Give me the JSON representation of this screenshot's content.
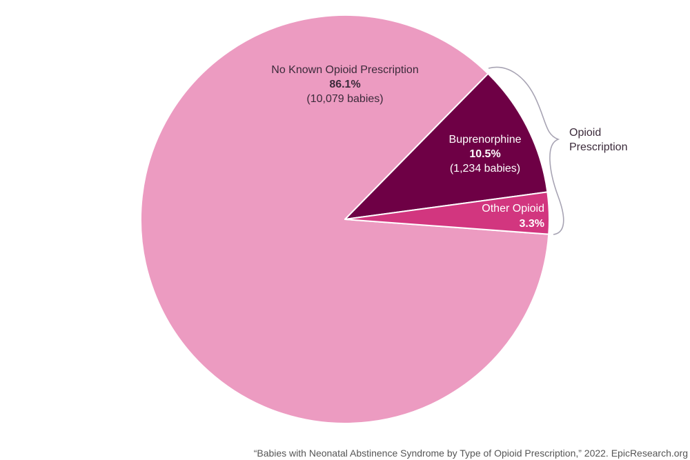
{
  "chart_data": {
    "type": "pie",
    "slices": [
      {
        "label": "No Known Opioid Prescription",
        "percent_label": "86.1%",
        "count_label": "(10,079 babies)",
        "value": 86.1,
        "color": "#ec9bc1"
      },
      {
        "label": "Buprenorphine",
        "percent_label": "10.5%",
        "count_label": "(1,234 babies)",
        "value": 10.5,
        "color": "#6e0045"
      },
      {
        "label": "Other Opioid",
        "percent_label": "3.3%",
        "count_label": "",
        "value": 3.3,
        "color": "#d2367f"
      }
    ],
    "group_label": {
      "line1": "Opioid",
      "line2": "Prescription"
    }
  },
  "caption": "“Babies with Neonatal Abstinence Syndrome by Type of Opioid Prescription,” 2022. EpicResearch.org"
}
